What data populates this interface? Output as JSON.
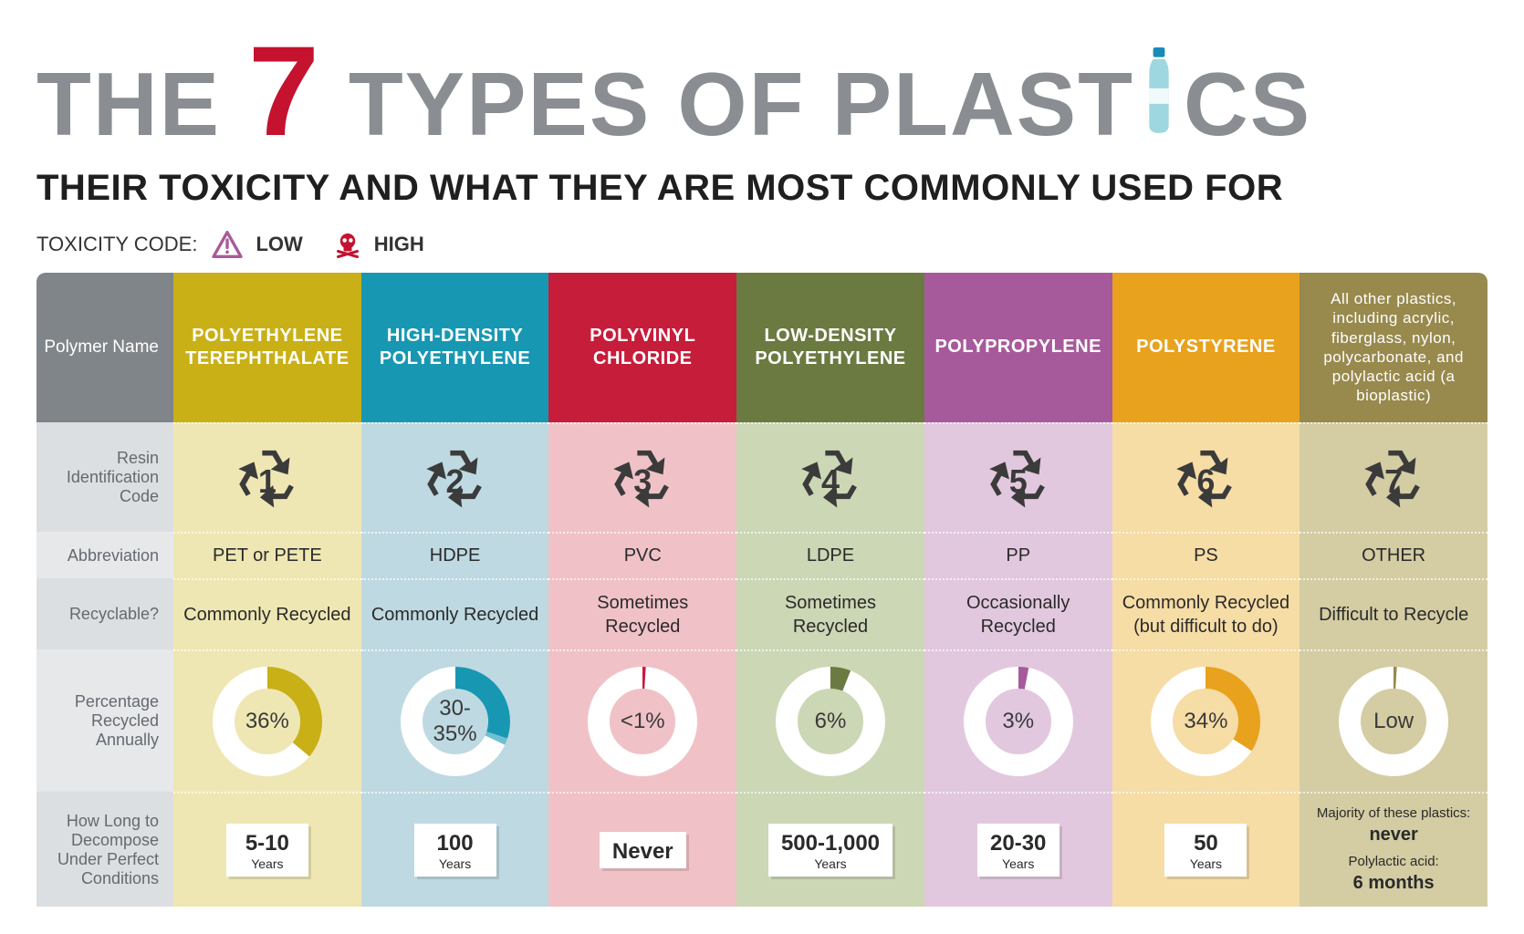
{
  "title": {
    "words_before": "THE",
    "seven": "7",
    "words_after_1": "TYPES OF PLAST",
    "words_after_2": "CS",
    "subtitle": "THEIR TOXICITY AND WHAT THEY ARE MOST COMMONLY USED FOR",
    "color_grey": "#8a8e92",
    "color_seven": "#c4122f",
    "bottle_color_body": "#9fd7e0",
    "bottle_color_cap": "#1a8bb7"
  },
  "toxicity": {
    "label": "TOXICITY CODE:",
    "low": "LOW",
    "high": "HIGH",
    "low_icon_stroke": "#a85a9b",
    "high_icon_fill": "#c4122f"
  },
  "rows": {
    "polymer": "Polymer Name",
    "ric": "Resin Identification Code",
    "abbrev": "Abbreviation",
    "recyclable": "Recyclable?",
    "percent": "Percentage Recycled Annually",
    "decomp": "How Long to Decompose Under Perfect Conditions"
  },
  "row_label_bg": {
    "header": "#808589",
    "ric": "#dcdfe1",
    "abbrev": "#e6e8ea",
    "recyclable": "#dcdfe1",
    "percent": "#e6e8ea",
    "decomp": "#dcdfe1",
    "label_text": "#646a70"
  },
  "columns": [
    {
      "name": "POLYETHYLENE TEREPHTHALATE",
      "header_bg": "#c9b016",
      "body_bg": "#efe7b3",
      "ric": "1",
      "abbrev": "PET or PETE",
      "recyclable": "Commonly Recycled",
      "donut": {
        "pct": 36,
        "label": "36%",
        "arc_color": "#c9b016"
      },
      "decomp": {
        "num": "5-10",
        "unit": "Years"
      }
    },
    {
      "name": "HIGH-DENSITY POLYETHYLENE",
      "header_bg": "#1897b3",
      "body_bg": "#bed9e1",
      "ric": "2",
      "abbrev": "HDPE",
      "recyclable": "Commonly Recycled",
      "donut": {
        "pct": 32,
        "pct_lo": 30,
        "label": "30-35%",
        "arc_color": "#1897b3",
        "arc_color2": "#6fbfd2"
      },
      "decomp": {
        "num": "100",
        "unit": "Years"
      }
    },
    {
      "name": "POLYVINYL CHLORIDE",
      "header_bg": "#c61d3b",
      "body_bg": "#f0c2c7",
      "ric": "3",
      "abbrev": "PVC",
      "recyclable": "Sometimes Recycled",
      "donut": {
        "pct": 1,
        "label": "<1%",
        "arc_color": "#c61d3b"
      },
      "decomp": {
        "num": "Never",
        "unit": ""
      }
    },
    {
      "name": "LOW-DENSITY POLYETHYLENE",
      "header_bg": "#6b7a41",
      "body_bg": "#ccd7b5",
      "ric": "4",
      "abbrev": "LDPE",
      "recyclable": "Sometimes Recycled",
      "donut": {
        "pct": 6,
        "label": "6%",
        "arc_color": "#6b7a41"
      },
      "decomp": {
        "num": "500-1,000",
        "unit": "Years"
      }
    },
    {
      "name": "POLYPROPYLENE",
      "header_bg": "#a75a9b",
      "body_bg": "#e2c8de",
      "ric": "5",
      "abbrev": "PP",
      "recyclable": "Occasionally Recycled",
      "donut": {
        "pct": 3,
        "label": "3%",
        "arc_color": "#a75a9b"
      },
      "decomp": {
        "num": "20-30",
        "unit": "Years"
      }
    },
    {
      "name": "POLYSTYRENE",
      "header_bg": "#e8a21d",
      "body_bg": "#f6dca5",
      "ric": "6",
      "abbrev": "PS",
      "recyclable": "Commonly Recycled (but difficult to do)",
      "donut": {
        "pct": 34,
        "label": "34%",
        "arc_color": "#e8a21d"
      },
      "decomp": {
        "num": "50",
        "unit": "Years"
      }
    },
    {
      "name": "All other plastics, including acrylic, fiberglass, nylon, polycarbonate, and polylactic acid (a bioplastic)",
      "header_bg": "#98894d",
      "body_bg": "#d4cca3",
      "ric": "7",
      "abbrev": "OTHER",
      "recyclable": "Difficult to Recycle",
      "donut": {
        "pct": 1,
        "label": "Low",
        "arc_color": "#98894d"
      },
      "decomp_other": {
        "l1": "Majority of these plastics:",
        "v1": "never",
        "l2": "Polylactic acid:",
        "v2": "6 months"
      }
    }
  ],
  "recycle_icon_color": "#3b3b3b",
  "donut_track_color": "#ffffff"
}
